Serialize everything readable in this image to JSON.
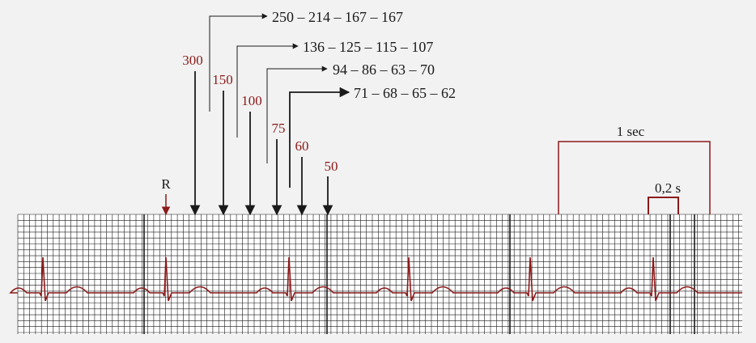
{
  "r_label": "R",
  "rate_labels": [
    {
      "value": "300",
      "key": "300"
    },
    {
      "value": "150",
      "key": "150"
    },
    {
      "value": "100",
      "key": "100"
    },
    {
      "value": "75",
      "key": "75"
    },
    {
      "value": "60",
      "key": "60"
    },
    {
      "value": "50",
      "key": "50"
    }
  ],
  "sequences": [
    {
      "key": "1",
      "text": "250 – 214 – 167 – 167"
    },
    {
      "key": "2",
      "text": "136 – 125 – 115 – 107"
    },
    {
      "key": "3",
      "text": "94 – 86 – 63 – 70"
    },
    {
      "key": "4",
      "text": "71 – 68 – 65  – 62"
    }
  ],
  "one_sec_label": "1 sec",
  "small_box_label": "0,2 s",
  "colors": {
    "accent": "#8b1a1a",
    "ink": "#1a1a1a",
    "background": "#f2f2f2",
    "grid": "#1a1a1a",
    "ecg_trace": "#8b1a1a"
  }
}
